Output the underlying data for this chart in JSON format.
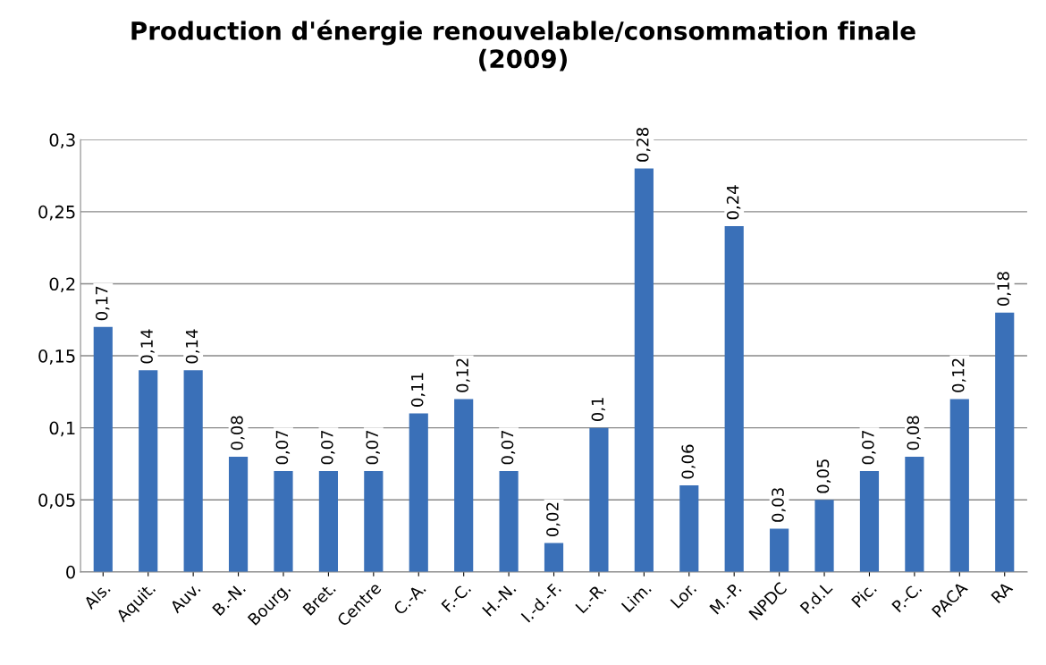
{
  "chart_data": {
    "type": "bar",
    "title": "Production d'énergie renouvelable/consommation finale\n(2009)",
    "categories": [
      "Als.",
      "Aquit.",
      "Auv.",
      "B.-N.",
      "Bourg.",
      "Bret.",
      "Centre",
      "C.-A.",
      "F.-C.",
      "H.-N.",
      "I.-d.-F.",
      "L.-R.",
      "Lim.",
      "Lor.",
      "M.-P.",
      "NPDC",
      "P.d.L",
      "Pic.",
      "P.-C.",
      "PACA",
      "RA"
    ],
    "values": [
      0.17,
      0.14,
      0.14,
      0.08,
      0.07,
      0.07,
      0.07,
      0.11,
      0.12,
      0.07,
      0.02,
      0.1,
      0.28,
      0.06,
      0.24,
      0.03,
      0.05,
      0.07,
      0.08,
      0.12,
      0.18
    ],
    "value_labels": [
      "0,17",
      "0,14",
      "0,14",
      "0,08",
      "0,07",
      "0,07",
      "0,07",
      "0,11",
      "0,12",
      "0,07",
      "0,02",
      "0,1",
      "0,28",
      "0,06",
      "0,24",
      "0,03",
      "0,05",
      "0,07",
      "0,08",
      "0,12",
      "0,18"
    ],
    "color": "#3a70b8",
    "ylim": [
      0,
      0.3
    ],
    "yticks": [
      {
        "value": 0,
        "label": "0"
      },
      {
        "value": 0.05,
        "label": "0,05"
      },
      {
        "value": 0.1,
        "label": "0,1"
      },
      {
        "value": 0.15,
        "label": "0,15"
      },
      {
        "value": 0.2,
        "label": "0,2"
      },
      {
        "value": 0.25,
        "label": "0,25"
      },
      {
        "value": 0.3,
        "label": "0,3"
      }
    ],
    "grid": "y",
    "legend": false
  }
}
